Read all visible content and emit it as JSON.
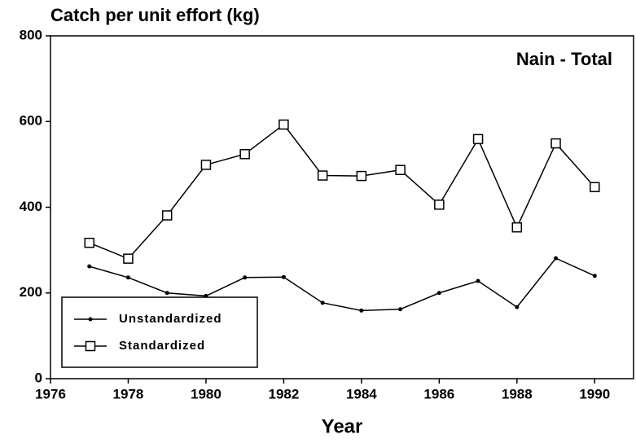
{
  "chart_data": {
    "type": "line",
    "title": "Catch per unit effort (kg)",
    "annotation": "Nain - Total",
    "x_label": "Year",
    "x": [
      1977,
      1978,
      1979,
      1980,
      1981,
      1982,
      1983,
      1984,
      1985,
      1986,
      1987,
      1988,
      1989,
      1990
    ],
    "series": [
      {
        "name": "Unstandardized",
        "color": "#000000",
        "marker": "dot",
        "values": [
          262,
          236,
          200,
          193,
          236,
          237,
          177,
          159,
          162,
          200,
          228,
          167,
          281,
          240
        ]
      },
      {
        "name": "Standardized",
        "color": "#000000",
        "marker": "square",
        "values": [
          317,
          280,
          381,
          499,
          524,
          593,
          474,
          473,
          487,
          406,
          559,
          353,
          549,
          447
        ]
      }
    ],
    "xlim": [
      1976,
      1991
    ],
    "xticks": [
      1976,
      1978,
      1980,
      1982,
      1984,
      1986,
      1988,
      1990
    ],
    "ylim": [
      0,
      800
    ],
    "yticks": [
      0,
      200,
      400,
      600,
      800
    ],
    "legend": "lower left"
  }
}
